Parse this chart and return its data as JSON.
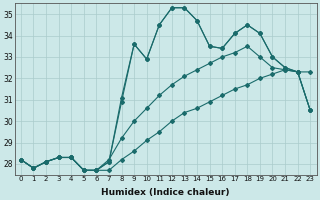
{
  "title": "",
  "xlabel": "Humidex (Indice chaleur)",
  "ylabel": "",
  "xlim": [
    -0.5,
    23.5
  ],
  "ylim": [
    27.5,
    35.5
  ],
  "yticks": [
    28,
    29,
    30,
    31,
    32,
    33,
    34,
    35
  ],
  "xticks": [
    0,
    1,
    2,
    3,
    4,
    5,
    6,
    7,
    8,
    9,
    10,
    11,
    12,
    13,
    14,
    15,
    16,
    17,
    18,
    19,
    20,
    21,
    22,
    23
  ],
  "background_color": "#cce8e8",
  "grid_color": "#b8d8d8",
  "line_color": "#1a6b6b",
  "lines": [
    [
      28.2,
      27.8,
      28.1,
      28.3,
      28.3,
      27.7,
      27.7,
      28.1,
      30.9,
      33.6,
      32.9,
      34.5,
      35.3,
      35.3,
      34.7,
      33.5,
      33.4,
      34.1,
      34.5,
      34.1,
      33.0,
      32.5,
      32.3,
      32.3
    ],
    [
      28.2,
      27.8,
      28.1,
      28.3,
      28.3,
      27.7,
      27.7,
      28.1,
      31.1,
      33.6,
      32.9,
      34.5,
      35.3,
      35.3,
      34.7,
      33.5,
      33.4,
      34.1,
      34.5,
      34.1,
      33.0,
      32.5,
      32.3,
      30.5
    ],
    [
      28.2,
      27.8,
      28.1,
      28.3,
      28.3,
      27.7,
      27.7,
      28.2,
      29.2,
      30.0,
      30.6,
      31.2,
      31.7,
      32.1,
      32.4,
      32.7,
      33.0,
      33.2,
      33.5,
      33.0,
      32.5,
      32.4,
      32.3,
      30.5
    ],
    [
      28.2,
      27.8,
      28.1,
      28.3,
      28.3,
      27.7,
      27.7,
      27.7,
      28.2,
      28.6,
      29.1,
      29.5,
      30.0,
      30.4,
      30.6,
      30.9,
      31.2,
      31.5,
      31.7,
      32.0,
      32.2,
      32.4,
      32.3,
      30.5
    ]
  ]
}
